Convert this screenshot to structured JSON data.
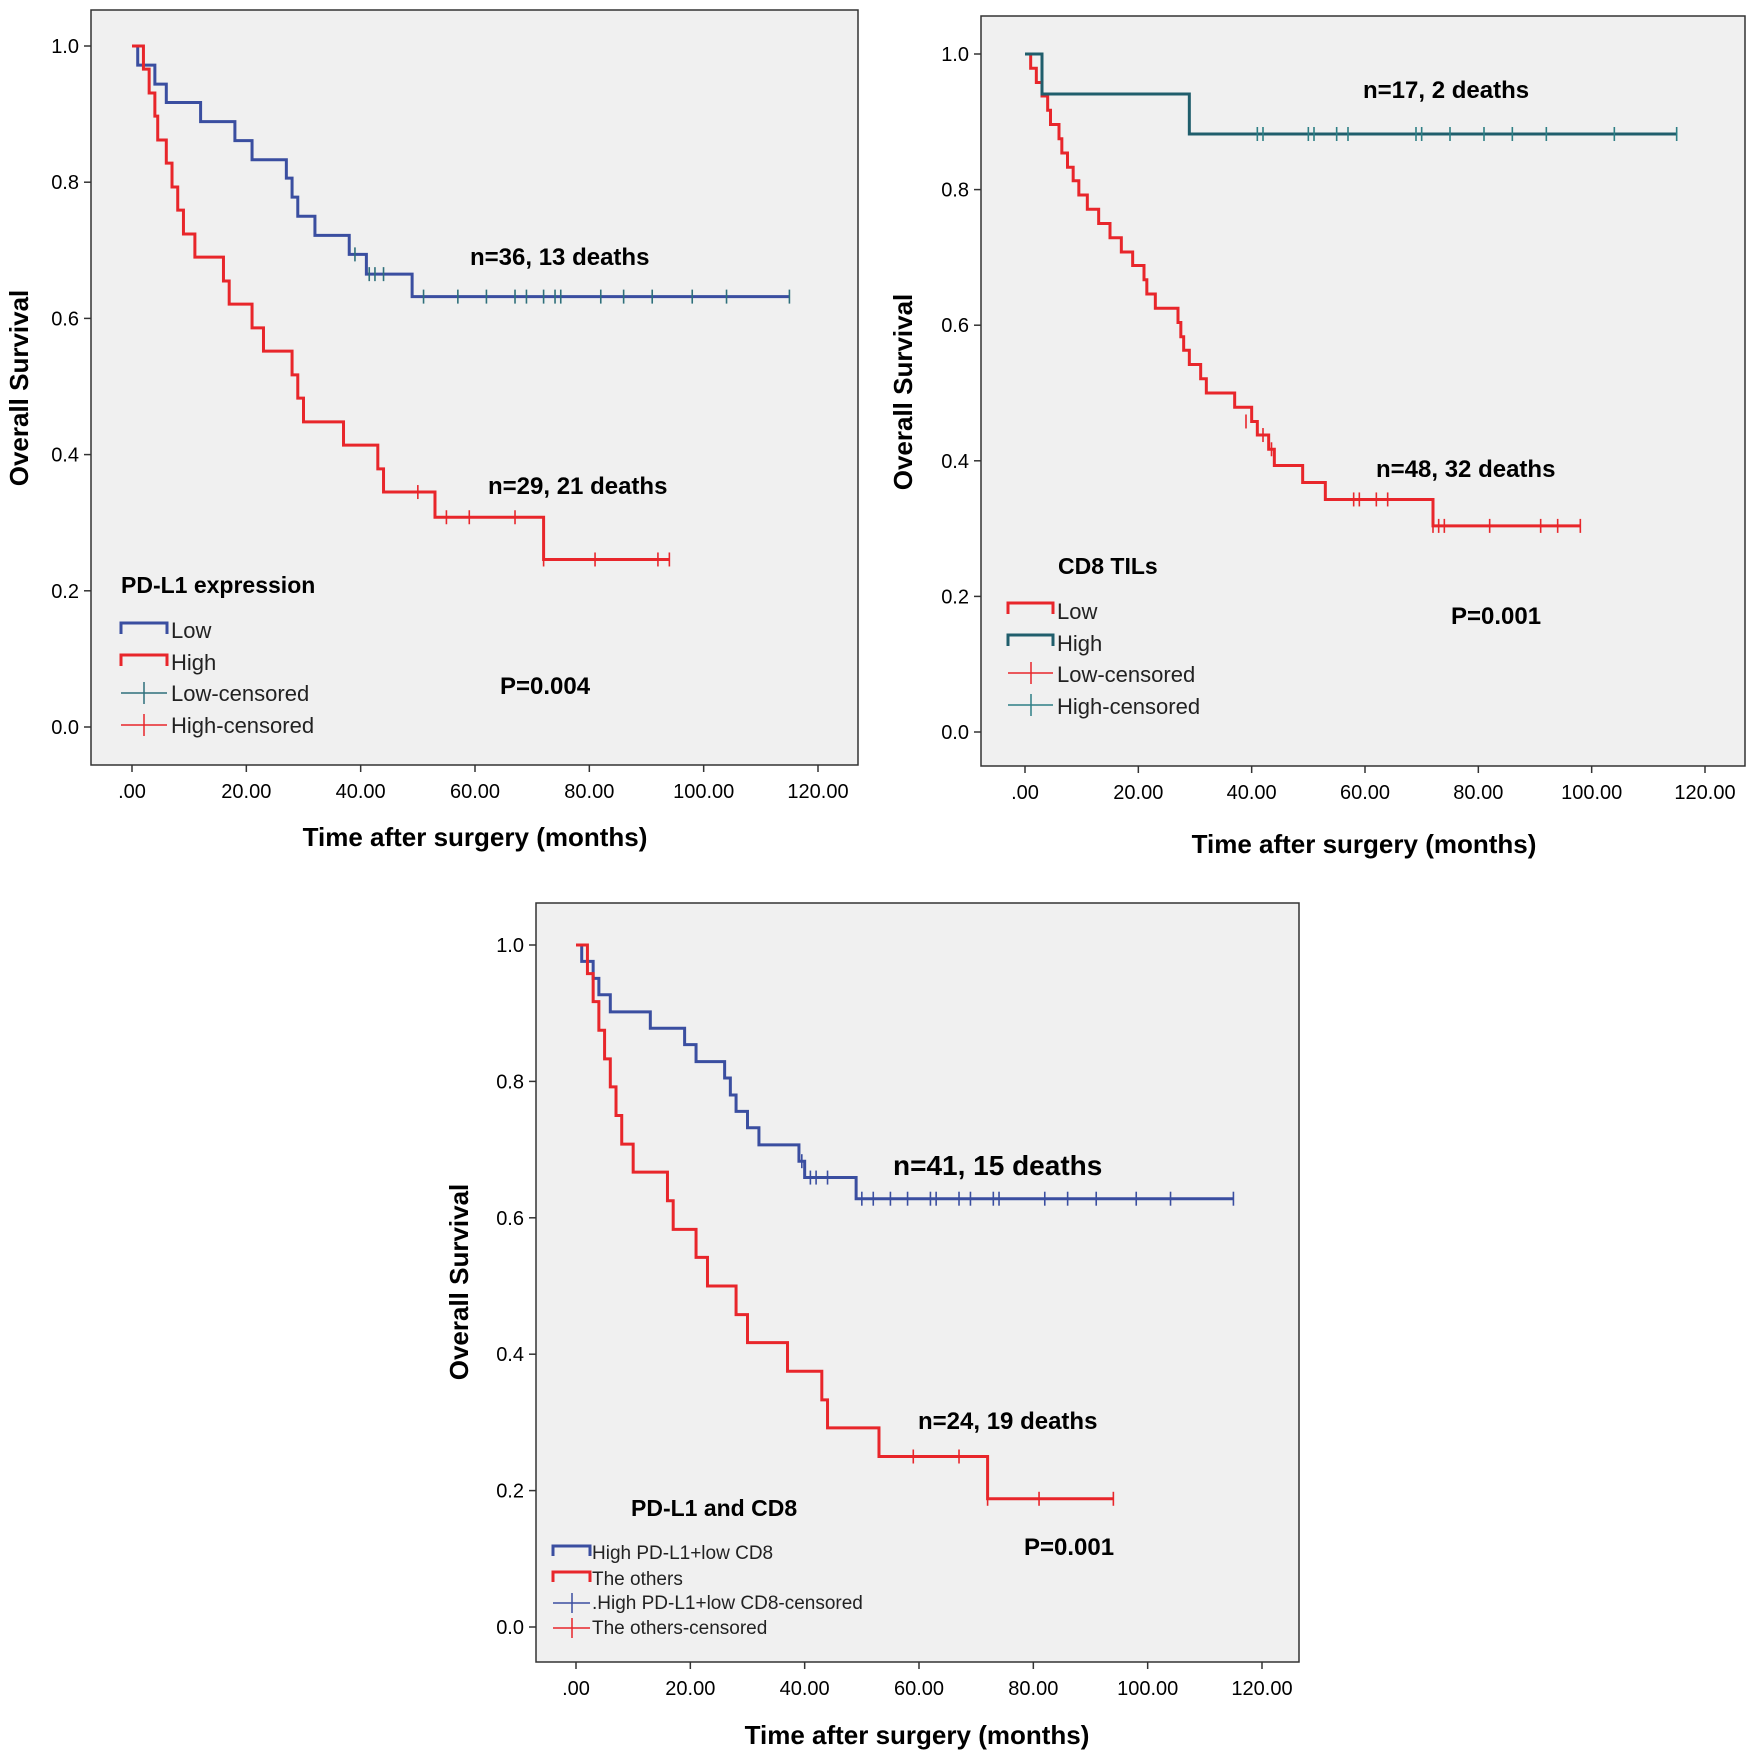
{
  "chart_data": [
    {
      "type": "line",
      "subtype": "kaplan-meier",
      "xlabel": "Time after surgery (months)",
      "ylabel": "Overall Survival",
      "xlim": [
        0,
        120
      ],
      "ylim": [
        0,
        1
      ],
      "xticks": [
        ".00",
        "20.00",
        "40.00",
        "60.00",
        "80.00",
        "100.00",
        "120.00"
      ],
      "yticks": [
        "0.0",
        "0.2",
        "0.4",
        "0.6",
        "0.8",
        "1.0"
      ],
      "grid": false,
      "legend_title": "PD-L1 expression",
      "legend": [
        "Low",
        "High",
        "Low-censored",
        "High-censored"
      ],
      "legend_placement": "bottom-left",
      "p_value": "P=0.004",
      "series": [
        {
          "name": "Low",
          "color": "#3a4ea0",
          "censor_color": "#2e6f7b",
          "annotation": "n=36, 13 deaths",
          "steps": [
            [
              0,
              1.0
            ],
            [
              1,
              0.972
            ],
            [
              4,
              0.944
            ],
            [
              6,
              0.917
            ],
            [
              12,
              0.889
            ],
            [
              18,
              0.861
            ],
            [
              21,
              0.833
            ],
            [
              27,
              0.806
            ],
            [
              28,
              0.778
            ],
            [
              29,
              0.75
            ],
            [
              32,
              0.722
            ],
            [
              38,
              0.694
            ],
            [
              41,
              0.665
            ],
            [
              49,
              0.632
            ],
            [
              115,
              0.632
            ]
          ],
          "censored": [
            [
              39,
              0.694
            ],
            [
              41.5,
              0.665
            ],
            [
              42.5,
              0.665
            ],
            [
              44,
              0.665
            ],
            [
              51,
              0.632
            ],
            [
              57,
              0.632
            ],
            [
              62,
              0.632
            ],
            [
              67,
              0.632
            ],
            [
              69,
              0.632
            ],
            [
              72,
              0.632
            ],
            [
              74,
              0.632
            ],
            [
              75,
              0.632
            ],
            [
              82,
              0.632
            ],
            [
              86,
              0.632
            ],
            [
              91,
              0.632
            ],
            [
              98,
              0.632
            ],
            [
              104,
              0.632
            ],
            [
              115,
              0.632
            ]
          ]
        },
        {
          "name": "High",
          "color": "#e8262b",
          "censor_color": "#e8262b",
          "annotation": "n=29, 21 deaths",
          "steps": [
            [
              0,
              1.0
            ],
            [
              2,
              0.966
            ],
            [
              3,
              0.931
            ],
            [
              4,
              0.897
            ],
            [
              4.5,
              0.862
            ],
            [
              6,
              0.828
            ],
            [
              7,
              0.793
            ],
            [
              8,
              0.759
            ],
            [
              9,
              0.724
            ],
            [
              11,
              0.69
            ],
            [
              16,
              0.655
            ],
            [
              17,
              0.621
            ],
            [
              21,
              0.586
            ],
            [
              23,
              0.552
            ],
            [
              28,
              0.517
            ],
            [
              29,
              0.483
            ],
            [
              30,
              0.448
            ],
            [
              37,
              0.414
            ],
            [
              43,
              0.379
            ],
            [
              44,
              0.345
            ],
            [
              53,
              0.308
            ],
            [
              72,
              0.246
            ],
            [
              94,
              0.246
            ]
          ],
          "censored": [
            [
              50,
              0.345
            ],
            [
              55,
              0.308
            ],
            [
              59,
              0.308
            ],
            [
              67,
              0.308
            ],
            [
              72,
              0.246
            ],
            [
              81,
              0.246
            ],
            [
              92,
              0.246
            ],
            [
              94,
              0.246
            ]
          ]
        }
      ]
    },
    {
      "type": "line",
      "subtype": "kaplan-meier",
      "xlabel": "Time after surgery (months)",
      "ylabel": "Overall Survival",
      "xlim": [
        0,
        120
      ],
      "ylim": [
        0,
        1
      ],
      "xticks": [
        ".00",
        "20.00",
        "40.00",
        "60.00",
        "80.00",
        "100.00",
        "120.00"
      ],
      "yticks": [
        "0.0",
        "0.2",
        "0.4",
        "0.6",
        "0.8",
        "1.0"
      ],
      "grid": false,
      "legend_title": "CD8 TILs",
      "legend": [
        "Low",
        "High",
        "Low-censored",
        "High-censored"
      ],
      "legend_placement": "bottom-left",
      "p_value": "P=0.001",
      "series": [
        {
          "name": "Low",
          "color": "#e8262b",
          "censor_color": "#e8262b",
          "annotation": "n=48, 32 deaths",
          "steps": [
            [
              0,
              1.0
            ],
            [
              1,
              0.979
            ],
            [
              2,
              0.958
            ],
            [
              3,
              0.938
            ],
            [
              4,
              0.917
            ],
            [
              4.5,
              0.896
            ],
            [
              6,
              0.875
            ],
            [
              6.5,
              0.854
            ],
            [
              7.5,
              0.833
            ],
            [
              8.5,
              0.813
            ],
            [
              9.5,
              0.792
            ],
            [
              11,
              0.771
            ],
            [
              13,
              0.75
            ],
            [
              15,
              0.729
            ],
            [
              17,
              0.708
            ],
            [
              19,
              0.688
            ],
            [
              21,
              0.667
            ],
            [
              21.5,
              0.646
            ],
            [
              23,
              0.625
            ],
            [
              27,
              0.604
            ],
            [
              27.5,
              0.583
            ],
            [
              28,
              0.563
            ],
            [
              29,
              0.542
            ],
            [
              31,
              0.521
            ],
            [
              32,
              0.5
            ],
            [
              37,
              0.479
            ],
            [
              40,
              0.458
            ],
            [
              41,
              0.438
            ],
            [
              43,
              0.417
            ],
            [
              44,
              0.393
            ],
            [
              49,
              0.368
            ],
            [
              53,
              0.343
            ],
            [
              72,
              0.304
            ],
            [
              98,
              0.304
            ]
          ],
          "censored": [
            [
              39,
              0.458
            ],
            [
              42,
              0.438
            ],
            [
              43.5,
              0.417
            ],
            [
              58,
              0.343
            ],
            [
              59,
              0.343
            ],
            [
              62,
              0.343
            ],
            [
              64,
              0.343
            ],
            [
              72,
              0.304
            ],
            [
              73,
              0.304
            ],
            [
              74,
              0.304
            ],
            [
              82,
              0.304
            ],
            [
              91,
              0.304
            ],
            [
              94,
              0.304
            ],
            [
              98,
              0.304
            ]
          ]
        },
        {
          "name": "High",
          "color": "#205e6c",
          "censor_color": "#2e7f85",
          "annotation": "n=17, 2 deaths",
          "steps": [
            [
              0,
              1.0
            ],
            [
              3,
              0.941
            ],
            [
              29,
              0.882
            ],
            [
              115,
              0.882
            ]
          ],
          "censored": [
            [
              41,
              0.882
            ],
            [
              42,
              0.882
            ],
            [
              50,
              0.882
            ],
            [
              51,
              0.882
            ],
            [
              55,
              0.882
            ],
            [
              57,
              0.882
            ],
            [
              69,
              0.882
            ],
            [
              70,
              0.882
            ],
            [
              75,
              0.882
            ],
            [
              81,
              0.882
            ],
            [
              86,
              0.882
            ],
            [
              92,
              0.882
            ],
            [
              104,
              0.882
            ],
            [
              115,
              0.882
            ]
          ]
        }
      ]
    },
    {
      "type": "line",
      "subtype": "kaplan-meier",
      "xlabel": "Time after surgery (months)",
      "ylabel": "Overall Survival",
      "xlim": [
        0,
        120
      ],
      "ylim": [
        0,
        1
      ],
      "xticks": [
        ".00",
        "20.00",
        "40.00",
        "60.00",
        "80.00",
        "100.00",
        "120.00"
      ],
      "yticks": [
        "0.0",
        "0.2",
        "0.4",
        "0.6",
        "0.8",
        "1.0"
      ],
      "grid": false,
      "legend_title": "PD-L1 and CD8",
      "legend": [
        "High PD-L1+low CD8",
        "The others",
        ".High PD-L1+low CD8-censored",
        "The others-censored"
      ],
      "legend_placement": "bottom-left",
      "p_value": "P=0.001",
      "series": [
        {
          "name": "High PD-L1+low CD8",
          "color": "#3a4ea0",
          "censor_color": "#3a4ea0",
          "annotation": "n=41, 15 deaths",
          "steps": [
            [
              0,
              1.0
            ],
            [
              1,
              0.976
            ],
            [
              3,
              0.951
            ],
            [
              4,
              0.927
            ],
            [
              6,
              0.902
            ],
            [
              13,
              0.878
            ],
            [
              19,
              0.854
            ],
            [
              21,
              0.829
            ],
            [
              26,
              0.805
            ],
            [
              27,
              0.78
            ],
            [
              28,
              0.756
            ],
            [
              30,
              0.732
            ],
            [
              32,
              0.707
            ],
            [
              39,
              0.683
            ],
            [
              40,
              0.659
            ],
            [
              49,
              0.628
            ],
            [
              115,
              0.628
            ]
          ],
          "censored": [
            [
              39.5,
              0.683
            ],
            [
              41,
              0.659
            ],
            [
              42,
              0.659
            ],
            [
              44,
              0.659
            ],
            [
              50,
              0.628
            ],
            [
              52,
              0.628
            ],
            [
              55,
              0.628
            ],
            [
              58,
              0.628
            ],
            [
              62,
              0.628
            ],
            [
              63,
              0.628
            ],
            [
              67,
              0.628
            ],
            [
              69,
              0.628
            ],
            [
              73,
              0.628
            ],
            [
              74,
              0.628
            ],
            [
              82,
              0.628
            ],
            [
              86,
              0.628
            ],
            [
              91,
              0.628
            ],
            [
              98,
              0.628
            ],
            [
              104,
              0.628
            ],
            [
              115,
              0.628
            ]
          ]
        },
        {
          "name": "The others",
          "color": "#e8262b",
          "censor_color": "#e8262b",
          "annotation": "n=24, 19 deaths",
          "steps": [
            [
              0,
              1.0
            ],
            [
              2,
              0.958
            ],
            [
              3,
              0.917
            ],
            [
              4,
              0.875
            ],
            [
              5,
              0.833
            ],
            [
              6,
              0.792
            ],
            [
              7,
              0.75
            ],
            [
              8,
              0.708
            ],
            [
              10,
              0.667
            ],
            [
              16,
              0.625
            ],
            [
              17,
              0.583
            ],
            [
              21,
              0.542
            ],
            [
              23,
              0.5
            ],
            [
              28,
              0.458
            ],
            [
              30,
              0.417
            ],
            [
              37,
              0.375
            ],
            [
              43,
              0.333
            ],
            [
              44,
              0.292
            ],
            [
              53,
              0.25
            ],
            [
              72,
              0.188
            ],
            [
              94,
              0.188
            ]
          ],
          "censored": [
            [
              59,
              0.25
            ],
            [
              67,
              0.25
            ],
            [
              72,
              0.188
            ],
            [
              81,
              0.188
            ],
            [
              94,
              0.188
            ]
          ]
        }
      ]
    }
  ]
}
